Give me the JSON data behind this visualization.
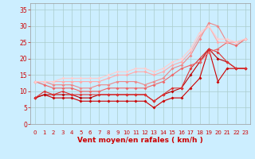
{
  "background_color": "#cceeff",
  "grid_color": "#aacccc",
  "xlabel": "Vent moyen/en rafales ( km/h )",
  "xlabel_color": "#cc0000",
  "tick_color": "#cc0000",
  "ylim": [
    0,
    37
  ],
  "xlim": [
    -0.5,
    23.5
  ],
  "yticks": [
    0,
    5,
    10,
    15,
    20,
    25,
    30,
    35
  ],
  "xticks": [
    0,
    1,
    2,
    3,
    4,
    5,
    6,
    7,
    8,
    9,
    10,
    11,
    12,
    13,
    14,
    15,
    16,
    17,
    18,
    19,
    20,
    21,
    22,
    23
  ],
  "lines": [
    {
      "x": [
        0,
        1,
        2,
        3,
        4,
        5,
        6,
        7,
        8,
        9,
        10,
        11,
        12,
        13,
        14,
        15,
        16,
        17,
        18,
        19,
        20,
        21,
        22,
        23
      ],
      "y": [
        8,
        9,
        8,
        8,
        8,
        7,
        7,
        7,
        7,
        7,
        7,
        7,
        7,
        5,
        7,
        8,
        8,
        11,
        14,
        23,
        13,
        17,
        17,
        17
      ],
      "color": "#cc0000",
      "lw": 0.8,
      "marker": "D",
      "ms": 2.0
    },
    {
      "x": [
        0,
        1,
        2,
        3,
        4,
        5,
        6,
        7,
        8,
        9,
        10,
        11,
        12,
        13,
        14,
        15,
        16,
        17,
        18,
        19,
        20,
        21,
        22,
        23
      ],
      "y": [
        8,
        9,
        9,
        9,
        9,
        8,
        8,
        9,
        9,
        9,
        9,
        9,
        9,
        7,
        9,
        10,
        11,
        15,
        19,
        23,
        20,
        19,
        17,
        17
      ],
      "color": "#bb0000",
      "lw": 0.8,
      "marker": "D",
      "ms": 2.0
    },
    {
      "x": [
        0,
        1,
        2,
        3,
        4,
        5,
        6,
        7,
        8,
        9,
        10,
        11,
        12,
        13,
        14,
        15,
        16,
        17,
        18,
        19,
        20,
        21,
        22,
        23
      ],
      "y": [
        8,
        10,
        9,
        10,
        9,
        9,
        9,
        9,
        9,
        9,
        9,
        9,
        9,
        7,
        9,
        11,
        11,
        17,
        20,
        23,
        22,
        19,
        17,
        17
      ],
      "color": "#dd3333",
      "lw": 0.8,
      "marker": "D",
      "ms": 2.0
    },
    {
      "x": [
        0,
        1,
        2,
        3,
        4,
        5,
        6,
        7,
        8,
        9,
        10,
        11,
        12,
        13,
        14,
        15,
        16,
        17,
        18,
        19,
        20,
        21,
        22,
        23
      ],
      "y": [
        13,
        12,
        11,
        11,
        11,
        10,
        10,
        10,
        11,
        11,
        11,
        11,
        11,
        12,
        13,
        15,
        17,
        18,
        19,
        22,
        23,
        25,
        24,
        26
      ],
      "color": "#ee6666",
      "lw": 0.8,
      "marker": "D",
      "ms": 2.0
    },
    {
      "x": [
        0,
        1,
        2,
        3,
        4,
        5,
        6,
        7,
        8,
        9,
        10,
        11,
        12,
        13,
        14,
        15,
        16,
        17,
        18,
        19,
        20,
        21,
        22,
        23
      ],
      "y": [
        13,
        13,
        12,
        12,
        12,
        11,
        11,
        12,
        12,
        13,
        13,
        13,
        12,
        13,
        14,
        17,
        18,
        21,
        26,
        31,
        30,
        25,
        25,
        26
      ],
      "color": "#ee8888",
      "lw": 0.8,
      "marker": "D",
      "ms": 2.0
    },
    {
      "x": [
        0,
        1,
        2,
        3,
        4,
        5,
        6,
        7,
        8,
        9,
        10,
        11,
        12,
        13,
        14,
        15,
        16,
        17,
        18,
        19,
        20,
        21,
        22,
        23
      ],
      "y": [
        13,
        13,
        13,
        13,
        13,
        13,
        13,
        13,
        14,
        15,
        15,
        16,
        16,
        15,
        16,
        18,
        19,
        22,
        27,
        30,
        25,
        25,
        25,
        26
      ],
      "color": "#ffaaaa",
      "lw": 0.8,
      "marker": "D",
      "ms": 2.0
    },
    {
      "x": [
        0,
        1,
        2,
        3,
        4,
        5,
        6,
        7,
        8,
        9,
        10,
        11,
        12,
        13,
        14,
        15,
        16,
        17,
        18,
        19,
        20,
        21,
        22,
        23
      ],
      "y": [
        13,
        13,
        13,
        14,
        14,
        14,
        14,
        14,
        15,
        16,
        16,
        17,
        17,
        16,
        17,
        19,
        20,
        23,
        28,
        30,
        26,
        26,
        25,
        26
      ],
      "color": "#ffcccc",
      "lw": 0.8,
      "marker": "D",
      "ms": 2.0
    }
  ],
  "arrow_labels": [
    "↗",
    "↗",
    "↗",
    "↗",
    "↗",
    "↗",
    "↗",
    "↗",
    "→",
    "↘",
    "↘",
    "↓",
    "↓",
    "↓",
    "↙",
    "↙",
    "↙",
    "↙",
    "↙",
    "↙",
    "↙",
    "↙",
    "↙",
    "↙"
  ]
}
